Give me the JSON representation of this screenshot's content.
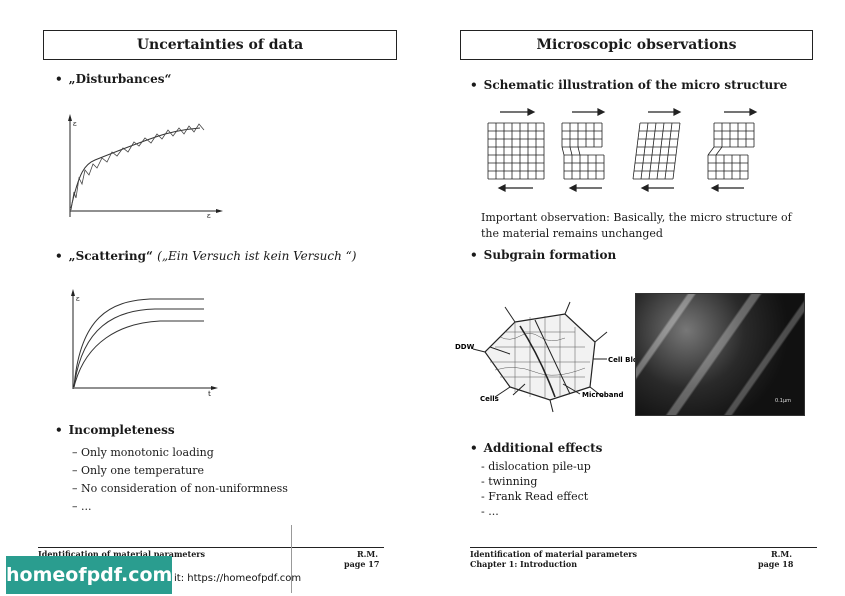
{
  "left_page": {
    "title": "Uncertainties of data",
    "disturbances": {
      "label": "„Disturbances“",
      "axis_y": "ε",
      "axis_x": "ε"
    },
    "scattering": {
      "label": "„Scattering“",
      "quote": "(„Ein Versuch ist kein Versuch “)",
      "axis_y": "ε",
      "axis_x": "t"
    },
    "incompleteness": {
      "label": "Incompleteness",
      "items": [
        "– Only monotonic loading",
        "– Only one temperature",
        "– No consideration of non-uniformness",
        "– ..."
      ]
    },
    "footer": {
      "left": "Identification of material parameters",
      "right_top": "R.M.",
      "right_bottom": "page  17"
    }
  },
  "right_page": {
    "title": "Microscopic observations",
    "schematic": {
      "label": "Schematic illustration of the micro structure"
    },
    "observation_text": "Important observation: Basically, the micro structure of the material remains unchanged",
    "subgrain": {
      "label": "Subgrain formation",
      "labels": {
        "ddw": "DDW",
        "cell_block": "Cell Block",
        "cells": "Cells",
        "microband": "Microband"
      },
      "photo_caption": "0.1μm"
    },
    "additional": {
      "label": "Additional effects",
      "items": [
        "- dislocation pile-up",
        "- twinning",
        "- Frank Read effect",
        "- ..."
      ]
    },
    "footer": {
      "left_top": "Identification of material parameters",
      "left_bottom": "Chapter 1: Introduction",
      "right_top": "R.M.",
      "right_bottom": "page  18"
    }
  },
  "brand": {
    "name": "homeofpdf.com",
    "url_text": "it: https://homeofpdf.com",
    "color": "#2a9d8f"
  }
}
